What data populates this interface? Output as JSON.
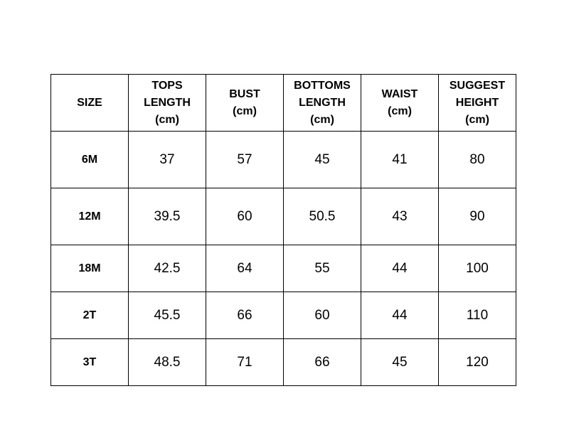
{
  "table": {
    "headers": [
      [
        "SIZE"
      ],
      [
        "TOPS",
        "LENGTH",
        "(cm)"
      ],
      [
        "BUST",
        "(cm)"
      ],
      [
        "BOTTOMS",
        "LENGTH",
        "(cm)"
      ],
      [
        "WAIST",
        "(cm)"
      ],
      [
        "SUGGEST",
        "HEIGHT",
        "(cm)"
      ]
    ],
    "rows": [
      [
        "6M",
        "37",
        "57",
        "45",
        "41",
        "80"
      ],
      [
        "12M",
        "39.5",
        "60",
        "50.5",
        "43",
        "90"
      ],
      [
        "18M",
        "42.5",
        "64",
        "55",
        "44",
        "100"
      ],
      [
        "2T",
        "45.5",
        "66",
        "60",
        "44",
        "110"
      ],
      [
        "3T",
        "48.5",
        "71",
        "66",
        "45",
        "120"
      ]
    ]
  }
}
